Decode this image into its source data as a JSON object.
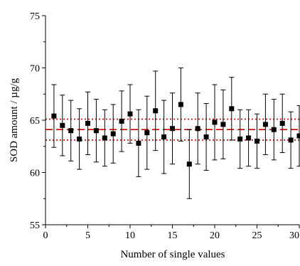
{
  "chart_data": {
    "type": "scatter",
    "title": "",
    "xlabel": "Number of single values",
    "ylabel": "SOD amount / µg/g",
    "xlim": [
      0,
      30
    ],
    "ylim": [
      55,
      75
    ],
    "x_ticks": [
      0,
      5,
      10,
      15,
      20,
      25,
      30
    ],
    "x_tick_labels": [
      "0",
      "5",
      "10",
      "15",
      "20",
      "25",
      "30"
    ],
    "y_ticks": [
      55,
      60,
      65,
      70,
      75
    ],
    "y_tick_labels": [
      "55",
      "60",
      "65",
      "70",
      "75"
    ],
    "grid": false,
    "legend": "none",
    "series": [
      {
        "marker": "square",
        "color": "#000000",
        "x": [
          1,
          2,
          3,
          4,
          5,
          6,
          7,
          8,
          9,
          10,
          11,
          12,
          13,
          14,
          15,
          16,
          17,
          18,
          19,
          20,
          21,
          22,
          23,
          24,
          25,
          26,
          27,
          28,
          29,
          30
        ],
        "y": [
          65.4,
          64.5,
          64.0,
          63.2,
          64.7,
          64.0,
          63.3,
          63.7,
          64.9,
          65.6,
          62.8,
          63.8,
          65.9,
          63.4,
          64.2,
          66.5,
          60.8,
          64.2,
          63.4,
          64.8,
          64.6,
          66.1,
          63.2,
          63.3,
          63.0,
          64.6,
          64.1,
          64.7,
          63.1,
          63.5
        ],
        "err": [
          3.0,
          2.9,
          2.9,
          2.9,
          3.0,
          3.0,
          2.7,
          2.8,
          2.9,
          2.8,
          3.2,
          3.5,
          3.8,
          3.5,
          3.4,
          3.5,
          3.3,
          3.4,
          3.2,
          3.6,
          3.3,
          3.0,
          2.8,
          2.7,
          2.6,
          2.9,
          2.9,
          2.8,
          2.7,
          2.9
        ]
      }
    ],
    "reference_lines": [
      {
        "y": 64.1,
        "style": "dashed",
        "color": "#cc0000"
      },
      {
        "y": 65.1,
        "style": "dotted",
        "color": "#cc0000"
      },
      {
        "y": 63.1,
        "style": "dotted",
        "color": "#cc0000"
      }
    ]
  }
}
